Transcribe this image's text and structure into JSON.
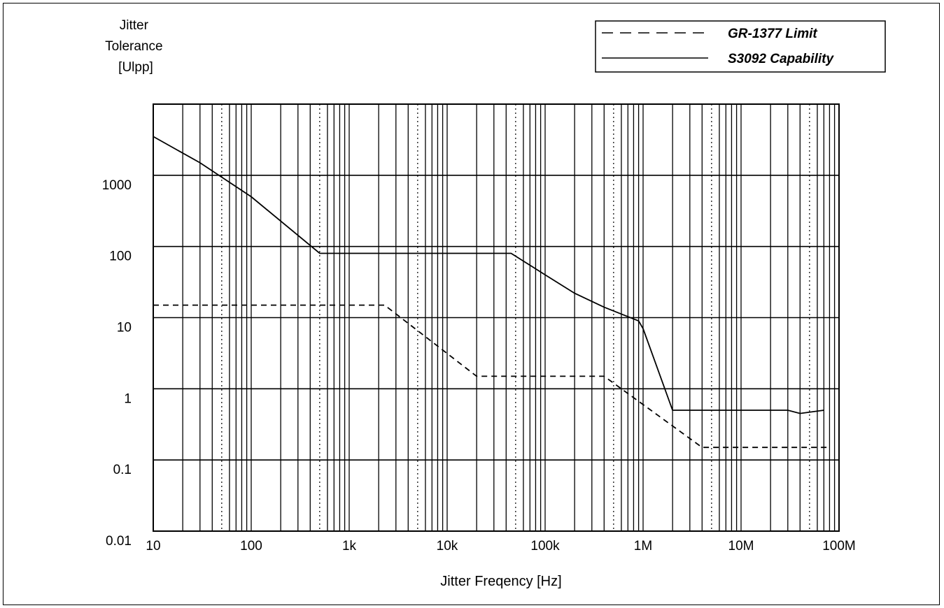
{
  "chart_data": {
    "type": "line",
    "ylabel": [
      "Jitter",
      "Tolerance",
      "[Ulpp]"
    ],
    "xlabel": "Jitter Freqency [Hz]",
    "xscale": "log",
    "yscale": "log",
    "xlim": [
      10,
      100000000
    ],
    "ylim": [
      0.01,
      10000
    ],
    "x_ticks": [
      {
        "value": 10,
        "label": "10"
      },
      {
        "value": 100,
        "label": "100"
      },
      {
        "value": 1000,
        "label": "1k"
      },
      {
        "value": 10000,
        "label": "10k"
      },
      {
        "value": 100000,
        "label": "100k"
      },
      {
        "value": 1000000,
        "label": "1M"
      },
      {
        "value": 10000000,
        "label": "10M"
      },
      {
        "value": 100000000,
        "label": "100M"
      }
    ],
    "y_ticks": [
      {
        "value": 0.01,
        "label": "0.01"
      },
      {
        "value": 0.1,
        "label": "0.1"
      },
      {
        "value": 1,
        "label": "1"
      },
      {
        "value": 10,
        "label": "10"
      },
      {
        "value": 100,
        "label": "100"
      },
      {
        "value": 1000,
        "label": "1000"
      }
    ],
    "grid": true,
    "legend_position": "top-right",
    "series": [
      {
        "name": "GR-1377 Limit",
        "style": "dashed",
        "color": "#000000",
        "points": [
          [
            10,
            15
          ],
          [
            2300,
            15
          ],
          [
            20000,
            1.5
          ],
          [
            400000,
            1.5
          ],
          [
            4000000,
            0.15
          ],
          [
            80000000,
            0.15
          ]
        ]
      },
      {
        "name": "S3092 Capability",
        "style": "solid",
        "color": "#000000",
        "points": [
          [
            10,
            3500
          ],
          [
            30,
            1500
          ],
          [
            100,
            500
          ],
          [
            500,
            80
          ],
          [
            45000,
            80
          ],
          [
            100000,
            40
          ],
          [
            200000,
            22
          ],
          [
            400000,
            14
          ],
          [
            900000,
            9
          ],
          [
            1000000,
            7
          ],
          [
            2000000,
            0.5
          ],
          [
            30000000,
            0.5
          ],
          [
            40000000,
            0.45
          ],
          [
            70000000,
            0.5
          ]
        ]
      }
    ]
  }
}
